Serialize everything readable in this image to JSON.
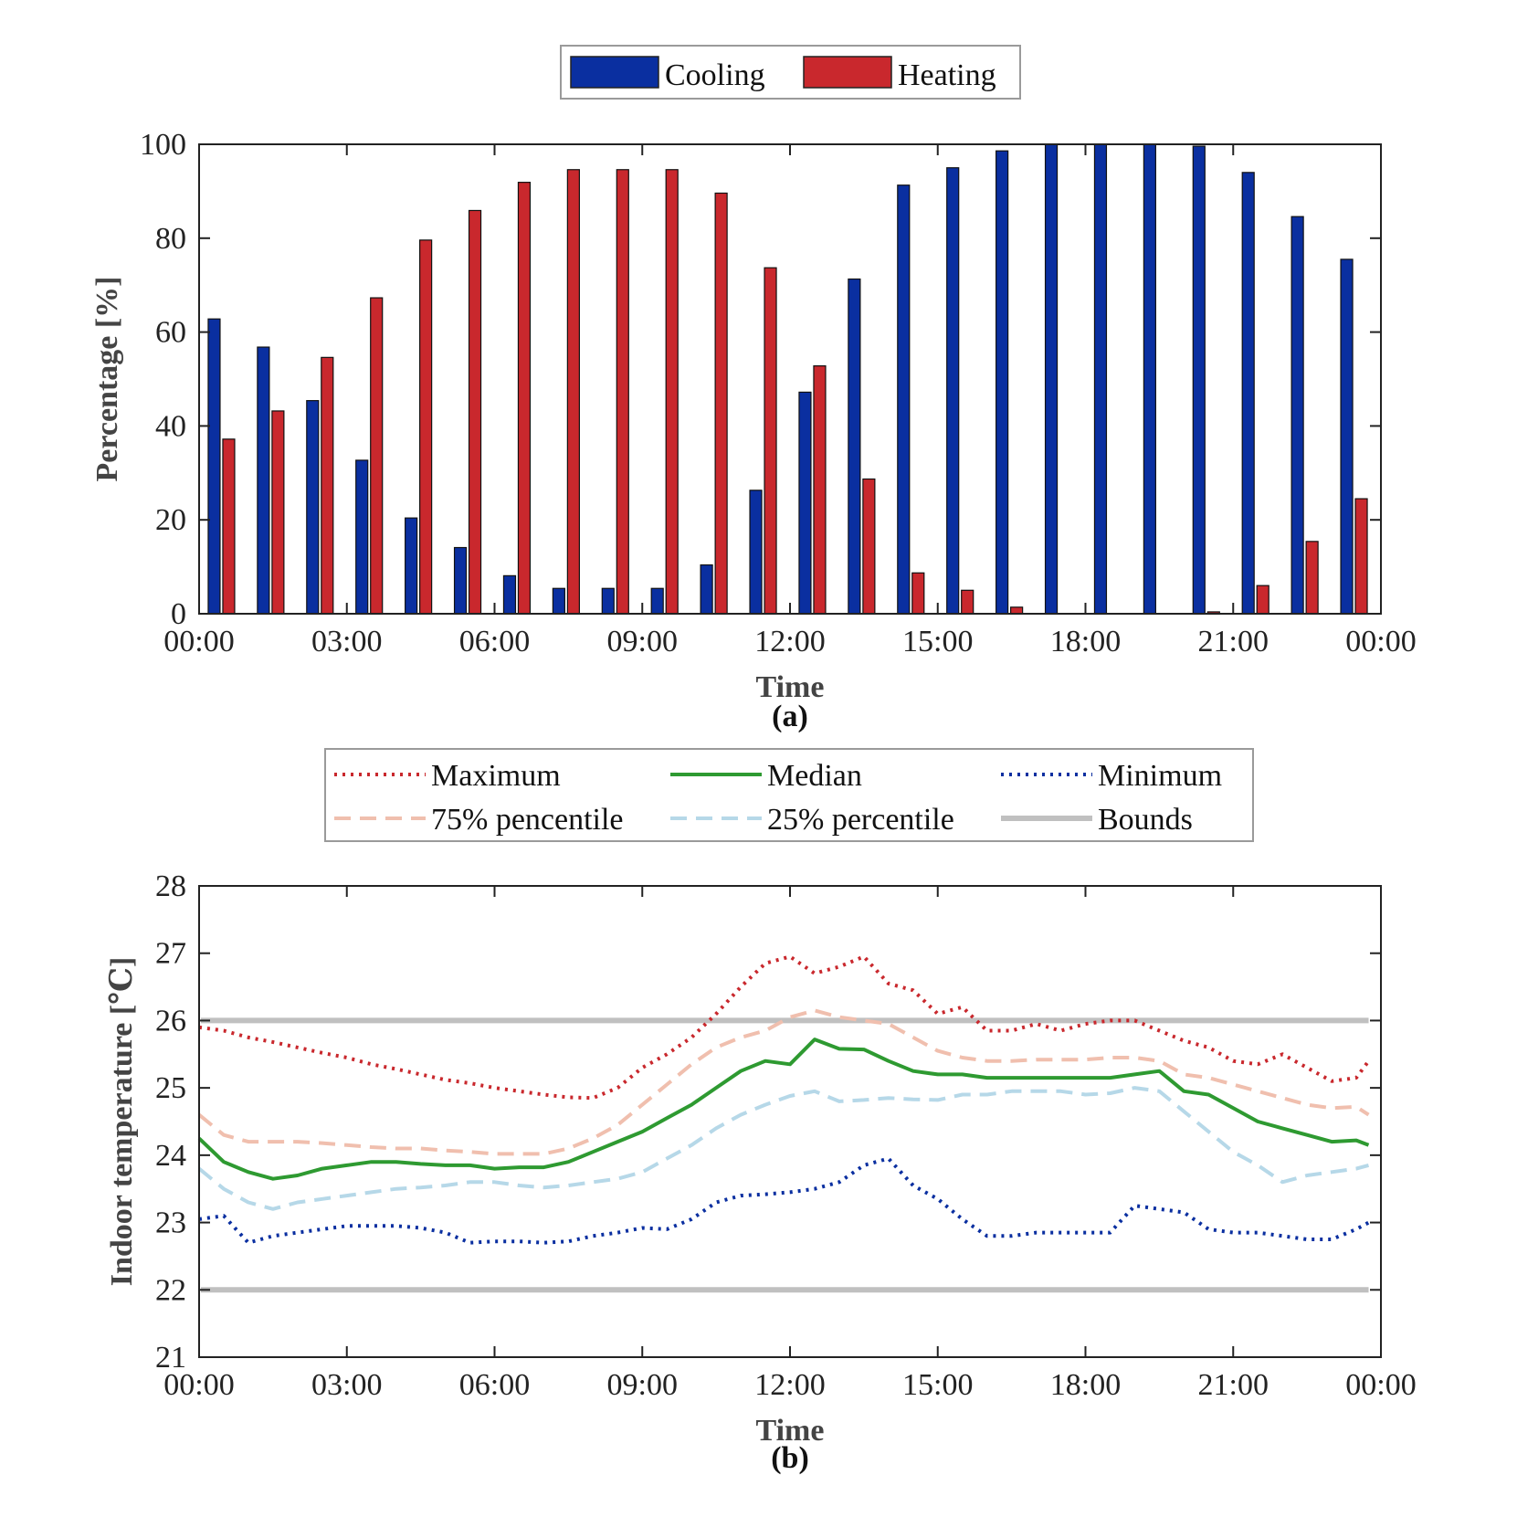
{
  "chart_data": [
    {
      "type": "bar",
      "panel_label": "(a)",
      "xlabel": "Time",
      "ylabel": "Percentage [%]",
      "ylim": [
        0,
        100
      ],
      "yticks": [
        "0",
        "20",
        "40",
        "60",
        "80",
        "100"
      ],
      "xtick_labels": [
        "00:00",
        "03:00",
        "06:00",
        "09:00",
        "12:00",
        "15:00",
        "18:00",
        "21:00",
        "00:00"
      ],
      "categories": [
        "00:00",
        "01:00",
        "02:00",
        "03:00",
        "04:00",
        "05:00",
        "06:00",
        "07:00",
        "08:00",
        "09:00",
        "10:00",
        "11:00",
        "12:00",
        "13:00",
        "14:00",
        "15:00",
        "16:00",
        "17:00",
        "18:00",
        "19:00",
        "20:00",
        "21:00",
        "22:00",
        "23:00"
      ],
      "legend_position": "top-center",
      "grid": false,
      "series": [
        {
          "name": "Cooling",
          "color": "#0a2fa0",
          "values": [
            62.8,
            56.8,
            45.4,
            32.7,
            20.4,
            14.1,
            8.1,
            5.4,
            5.4,
            5.4,
            10.4,
            26.3,
            47.2,
            71.3,
            91.3,
            95.0,
            98.6,
            100,
            100,
            100,
            99.6,
            94.0,
            84.6,
            75.5
          ]
        },
        {
          "name": "Heating",
          "color": "#c9282d",
          "values": [
            37.2,
            43.2,
            54.6,
            67.3,
            79.6,
            85.9,
            91.9,
            94.6,
            94.6,
            94.6,
            89.6,
            73.7,
            52.8,
            28.7,
            8.7,
            5.0,
            1.4,
            0,
            0,
            0,
            0.4,
            6.0,
            15.4,
            24.5
          ]
        }
      ]
    },
    {
      "type": "line",
      "panel_label": "(b)",
      "xlabel": "Time",
      "ylabel": "Indoor temperature [℃]",
      "ylim": [
        21,
        28
      ],
      "yticks": [
        "21",
        "22",
        "23",
        "24",
        "25",
        "26",
        "27",
        "28"
      ],
      "xlim_hours": [
        0,
        24
      ],
      "xtick_labels": [
        "00:00",
        "03:00",
        "06:00",
        "09:00",
        "12:00",
        "15:00",
        "18:00",
        "21:00",
        "00:00"
      ],
      "legend_position": "top-center",
      "grid": false,
      "x_hours": [
        0,
        0.5,
        1,
        1.5,
        2,
        2.5,
        3,
        3.5,
        4,
        4.5,
        5,
        5.5,
        6,
        6.5,
        7,
        7.5,
        8,
        8.5,
        9,
        9.5,
        10,
        10.5,
        11,
        11.5,
        12,
        12.5,
        13,
        13.5,
        14,
        14.5,
        15,
        15.5,
        16,
        16.5,
        17,
        17.5,
        18,
        18.5,
        19,
        19.5,
        20,
        20.5,
        21,
        21.5,
        22,
        22.5,
        23,
        23.5,
        23.75
      ],
      "series": [
        {
          "name": "Maximum",
          "color": "#c9282d",
          "style": "dotted",
          "values": [
            25.9,
            25.85,
            25.75,
            25.68,
            25.6,
            25.52,
            25.45,
            25.35,
            25.28,
            25.2,
            25.12,
            25.07,
            25.0,
            24.95,
            24.9,
            24.86,
            24.85,
            25.0,
            25.3,
            25.5,
            25.75,
            26.1,
            26.5,
            26.85,
            26.95,
            26.7,
            26.8,
            26.95,
            26.55,
            26.45,
            26.1,
            26.2,
            25.85,
            25.85,
            25.95,
            25.85,
            25.95,
            26.0,
            26.0,
            25.85,
            25.7,
            25.6,
            25.4,
            25.35,
            25.5,
            25.3,
            25.1,
            25.15,
            25.4
          ]
        },
        {
          "name": "Median",
          "color": "#2e9a31",
          "style": "solid",
          "values": [
            24.25,
            23.9,
            23.75,
            23.65,
            23.7,
            23.8,
            23.85,
            23.9,
            23.9,
            23.87,
            23.85,
            23.85,
            23.8,
            23.82,
            23.82,
            23.9,
            24.05,
            24.2,
            24.35,
            24.55,
            24.75,
            25.0,
            25.25,
            25.4,
            25.35,
            25.72,
            25.58,
            25.57,
            25.4,
            25.25,
            25.2,
            25.2,
            25.15,
            25.15,
            25.15,
            25.15,
            25.15,
            25.15,
            25.2,
            25.25,
            24.95,
            24.9,
            24.7,
            24.5,
            24.4,
            24.3,
            24.2,
            24.22,
            24.15
          ]
        },
        {
          "name": "Minimum",
          "color": "#0a2fa0",
          "style": "dotted",
          "values": [
            23.05,
            23.1,
            22.7,
            22.8,
            22.85,
            22.9,
            22.95,
            22.95,
            22.95,
            22.92,
            22.85,
            22.7,
            22.72,
            22.72,
            22.7,
            22.72,
            22.8,
            22.85,
            22.92,
            22.9,
            23.05,
            23.3,
            23.4,
            23.42,
            23.45,
            23.5,
            23.6,
            23.85,
            23.95,
            23.55,
            23.35,
            23.05,
            22.8,
            22.8,
            22.85,
            22.85,
            22.85,
            22.85,
            23.25,
            23.2,
            23.15,
            22.9,
            22.85,
            22.85,
            22.8,
            22.75,
            22.75,
            22.9,
            23.0
          ]
        },
        {
          "name": "75% pencentile",
          "color": "#f0bfae",
          "style": "dashed",
          "values": [
            24.6,
            24.3,
            24.2,
            24.2,
            24.2,
            24.18,
            24.15,
            24.12,
            24.1,
            24.1,
            24.07,
            24.05,
            24.02,
            24.02,
            24.02,
            24.1,
            24.25,
            24.45,
            24.75,
            25.05,
            25.35,
            25.6,
            25.75,
            25.85,
            26.05,
            26.15,
            26.05,
            26.0,
            25.95,
            25.75,
            25.55,
            25.45,
            25.4,
            25.4,
            25.42,
            25.42,
            25.42,
            25.45,
            25.45,
            25.4,
            25.2,
            25.15,
            25.05,
            24.95,
            24.85,
            24.75,
            24.7,
            24.72,
            24.6
          ]
        },
        {
          "name": "25% percentile",
          "color": "#b6d8e8",
          "style": "dashed",
          "values": [
            23.8,
            23.5,
            23.3,
            23.2,
            23.3,
            23.35,
            23.4,
            23.45,
            23.5,
            23.52,
            23.55,
            23.6,
            23.6,
            23.55,
            23.52,
            23.55,
            23.6,
            23.65,
            23.75,
            23.95,
            24.15,
            24.4,
            24.6,
            24.75,
            24.88,
            24.95,
            24.8,
            24.82,
            24.85,
            24.83,
            24.82,
            24.9,
            24.9,
            24.95,
            24.95,
            24.95,
            24.9,
            24.92,
            25.0,
            24.95,
            24.65,
            24.35,
            24.05,
            23.85,
            23.6,
            23.7,
            23.75,
            23.8,
            23.85
          ]
        },
        {
          "name": "Bounds",
          "color": "#c0c0c0",
          "style": "thick",
          "lower": 22,
          "upper": 26
        }
      ]
    }
  ]
}
